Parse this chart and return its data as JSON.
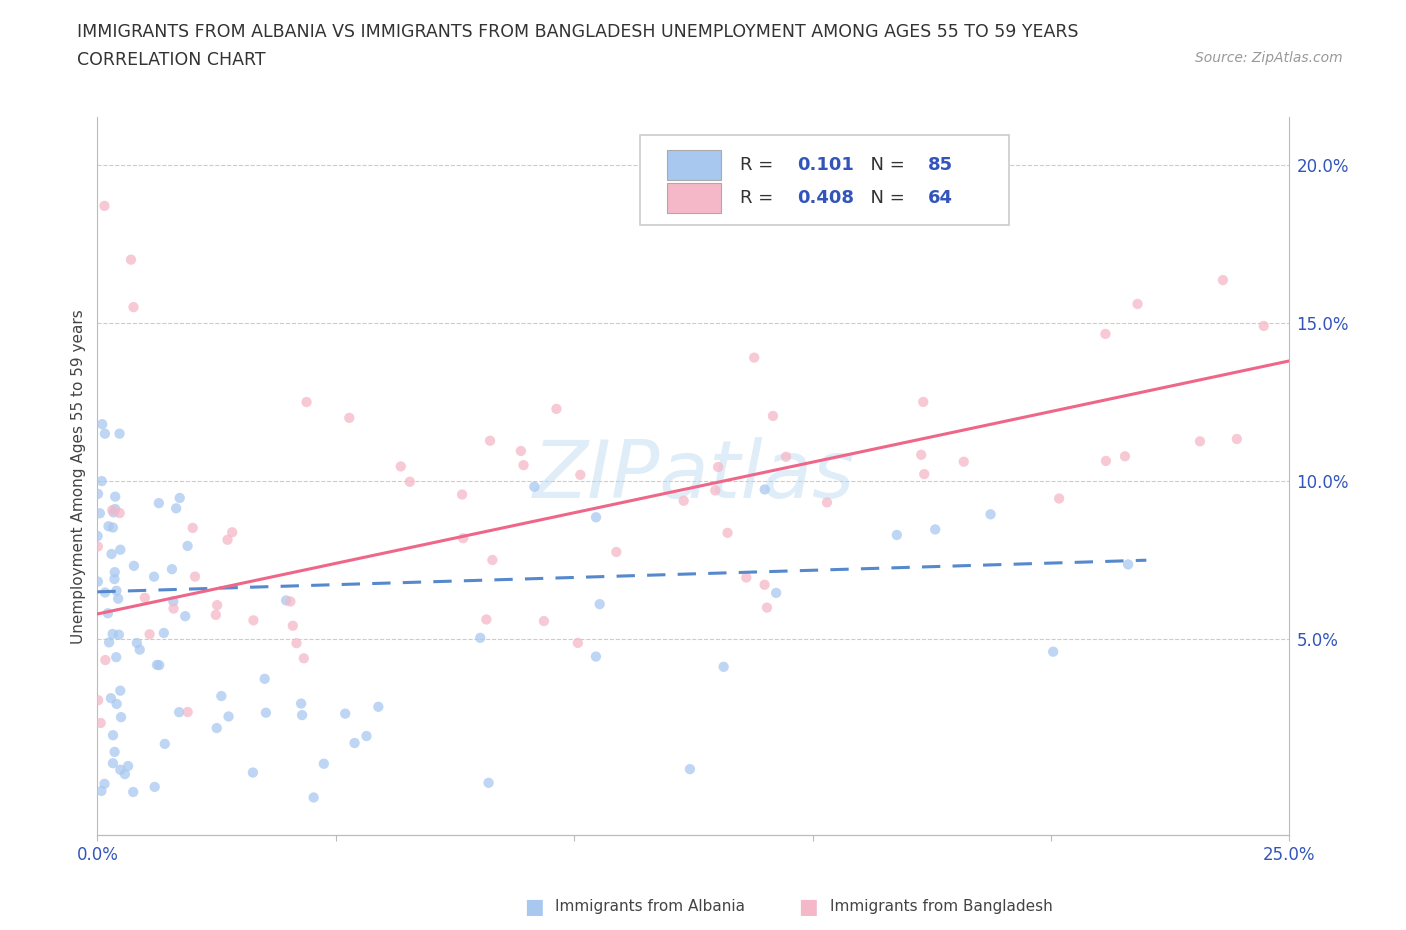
{
  "title_line1": "IMMIGRANTS FROM ALBANIA VS IMMIGRANTS FROM BANGLADESH UNEMPLOYMENT AMONG AGES 55 TO 59 YEARS",
  "title_line2": "CORRELATION CHART",
  "source_text": "Source: ZipAtlas.com",
  "ylabel": "Unemployment Among Ages 55 to 59 years",
  "xlim": [
    0.0,
    0.25
  ],
  "ylim": [
    -0.012,
    0.215
  ],
  "xticks": [
    0.0,
    0.05,
    0.1,
    0.15,
    0.2,
    0.25
  ],
  "yticks": [
    0.05,
    0.1,
    0.15,
    0.2
  ],
  "ytick_labels": [
    "5.0%",
    "10.0%",
    "15.0%",
    "20.0%"
  ],
  "xtick_labels": [
    "0.0%",
    "",
    "",
    "",
    "",
    "25.0%"
  ],
  "albania_color": "#a8c8f0",
  "bangladesh_color": "#f5b8c8",
  "albania_line_color": "#5588cc",
  "bangladesh_line_color": "#ee6688",
  "albania_R": 0.101,
  "albania_N": 85,
  "bangladesh_R": 0.408,
  "bangladesh_N": 64,
  "watermark": "ZIPatlas",
  "background_color": "#ffffff",
  "alb_line_x": [
    0.0,
    0.22
  ],
  "alb_line_y": [
    0.065,
    0.075
  ],
  "bang_line_x": [
    0.0,
    0.25
  ],
  "bang_line_y": [
    0.058,
    0.138
  ],
  "legend_R_color": "#3355bb",
  "legend_N_color": "#3355bb"
}
